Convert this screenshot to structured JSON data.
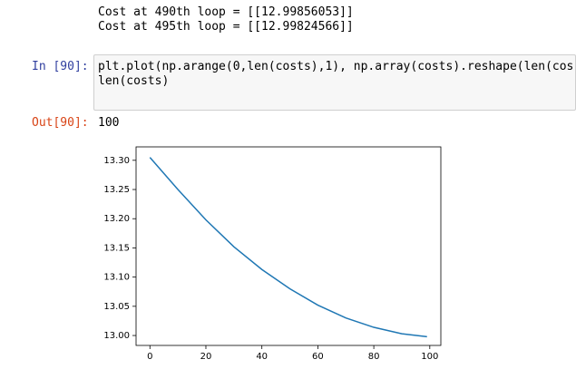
{
  "output": {
    "lines": [
      "Cost at 490th loop = [[12.99856053]]",
      "Cost at 495th loop = [[12.99824566]]"
    ]
  },
  "cell": {
    "input_prompt": "In [90]:",
    "code": [
      "plt.plot(np.arange(0,len(costs),1), np.array(costs).reshape(len(cos",
      "len(costs)"
    ],
    "output_prompt": "Out[90]:",
    "output_value": "100"
  },
  "chart_data": {
    "type": "line",
    "x": [
      0,
      10,
      20,
      30,
      40,
      50,
      60,
      70,
      80,
      90,
      99
    ],
    "series": [
      {
        "color": "#1f77b4",
        "values": [
          13.305,
          13.25,
          13.198,
          13.152,
          13.113,
          13.08,
          13.052,
          13.03,
          13.014,
          13.003,
          12.998
        ]
      }
    ],
    "xlim": [
      -4.95,
      103.95
    ],
    "ylim": [
      12.983,
      13.323
    ],
    "xticks": [
      0,
      20,
      40,
      60,
      80,
      100
    ],
    "yticks": [
      {
        "value": 13.0,
        "label": "13.00"
      },
      13.05,
      {
        "value": 13.1,
        "label": "13.10"
      },
      13.15,
      {
        "value": 13.2,
        "label": "13.20"
      },
      13.25,
      {
        "value": 13.3,
        "label": "13.30"
      }
    ]
  }
}
